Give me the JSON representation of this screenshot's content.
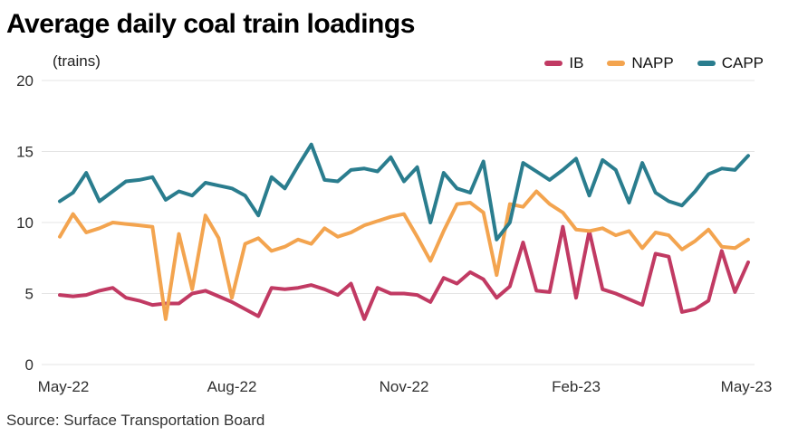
{
  "title": "Average daily coal train loadings",
  "unit_label": "(trains)",
  "source": "Source: Surface Transportation Board",
  "legend": [
    {
      "label": "IB",
      "color": "#c13a63"
    },
    {
      "label": "NAPP",
      "color": "#f3a44f"
    },
    {
      "label": "CAPP",
      "color": "#2a7d8e"
    }
  ],
  "chart_data": {
    "type": "line",
    "title": "Average daily coal train loadings",
    "ylabel": "(trains)",
    "xlabel": "",
    "ylim": [
      0,
      20
    ],
    "yticks": [
      0,
      5,
      10,
      15,
      20
    ],
    "grid": "horizontal",
    "legend_position": "top-right",
    "x_unit": "weekly, May-22 through May-23",
    "x_tick_labels": [
      "May-22",
      "Aug-22",
      "Nov-22",
      "Feb-23",
      "May-23"
    ],
    "x_tick_indices": [
      0,
      13,
      26,
      39,
      52
    ],
    "series": [
      {
        "name": "IB",
        "color": "#c13a63",
        "values": [
          4.9,
          4.8,
          4.9,
          5.2,
          5.4,
          4.7,
          4.5,
          4.2,
          4.3,
          4.3,
          5.0,
          5.2,
          4.8,
          4.4,
          3.9,
          3.4,
          5.4,
          5.3,
          5.4,
          5.6,
          5.3,
          4.9,
          5.7,
          3.2,
          5.4,
          5.0,
          5.0,
          4.9,
          4.4,
          6.1,
          5.7,
          6.5,
          6.0,
          4.7,
          5.5,
          8.6,
          5.2,
          5.1,
          9.7,
          4.7,
          9.4,
          5.3,
          5.0,
          4.6,
          4.2,
          7.8,
          7.6,
          3.7,
          3.9,
          4.5,
          8.0,
          5.1,
          7.2
        ]
      },
      {
        "name": "NAPP",
        "color": "#f3a44f",
        "values": [
          9.0,
          10.6,
          9.3,
          9.6,
          10.0,
          9.9,
          9.8,
          9.7,
          3.2,
          9.2,
          5.3,
          10.5,
          8.9,
          4.7,
          8.5,
          8.9,
          8.0,
          8.3,
          8.8,
          8.5,
          9.6,
          9.0,
          9.3,
          9.8,
          10.1,
          10.4,
          10.6,
          9.0,
          7.3,
          9.4,
          11.3,
          11.4,
          10.7,
          6.3,
          11.3,
          11.1,
          12.2,
          11.3,
          10.7,
          9.5,
          9.4,
          9.6,
          9.1,
          9.4,
          8.2,
          9.3,
          9.1,
          8.1,
          8.7,
          9.5,
          8.3,
          8.2,
          8.8
        ]
      },
      {
        "name": "CAPP",
        "color": "#2a7d8e",
        "values": [
          11.5,
          12.1,
          13.5,
          11.5,
          12.2,
          12.9,
          13.0,
          13.2,
          11.6,
          12.2,
          11.9,
          12.8,
          12.6,
          12.4,
          11.9,
          10.5,
          13.2,
          12.4,
          14.0,
          15.5,
          13.0,
          12.9,
          13.7,
          13.8,
          13.6,
          14.6,
          12.9,
          13.9,
          10.0,
          13.5,
          12.4,
          12.1,
          14.3,
          8.8,
          10.0,
          14.2,
          13.6,
          13.0,
          13.7,
          14.5,
          11.9,
          14.4,
          13.7,
          11.4,
          14.2,
          12.1,
          11.5,
          11.2,
          12.2,
          13.4,
          13.8,
          13.7,
          14.7
        ]
      }
    ]
  }
}
